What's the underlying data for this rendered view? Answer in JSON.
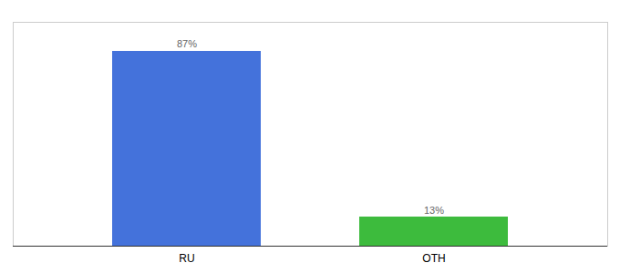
{
  "chart_data": {
    "type": "bar",
    "categories": [
      "RU",
      "OTH"
    ],
    "values": [
      87,
      13
    ],
    "value_labels": [
      "87%",
      "13%"
    ],
    "colors": [
      "#4472db",
      "#3dbb3d"
    ],
    "data_labels": true,
    "ylim": [
      0,
      100
    ],
    "grid": false,
    "tick_labels": "x"
  }
}
